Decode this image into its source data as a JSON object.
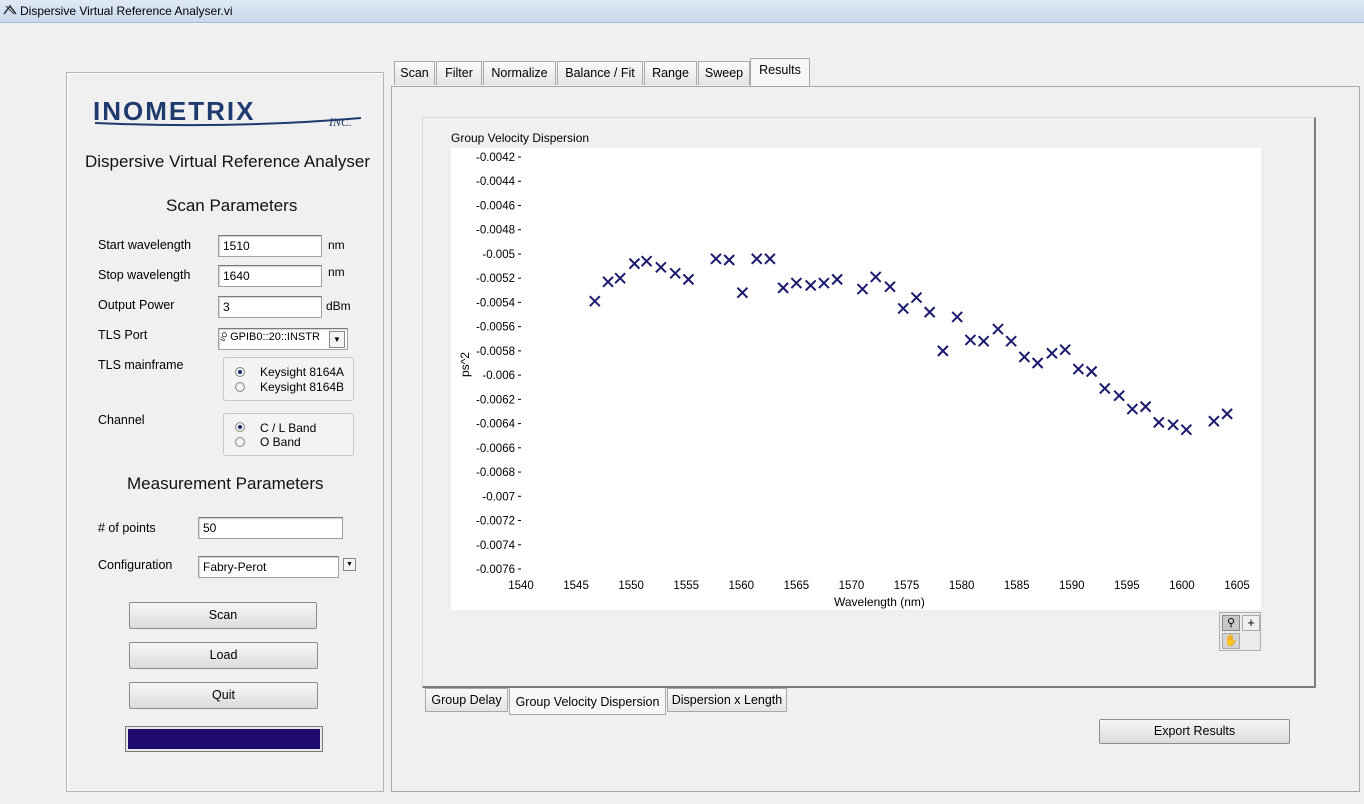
{
  "window": {
    "title": "Dispersive Virtual Reference Analyser.vi"
  },
  "left": {
    "logo_text": "INOMETRIX",
    "logo_suffix": "INC.",
    "app_title": "Dispersive Virtual Reference Analyser",
    "scan_heading": "Scan Parameters",
    "start_label": "Start wavelength",
    "start_value": "1510",
    "start_unit": "nm",
    "stop_label": "Stop wavelength",
    "stop_value": "1640",
    "stop_unit": "nm",
    "power_label": "Output Power",
    "power_value": "3",
    "power_unit": "dBm",
    "port_label": "TLS Port",
    "port_prefix": "I/O",
    "port_value": "GPIB0::20::INSTR",
    "mainframe_label": "TLS mainframe",
    "mainframe_options": [
      "Keysight 8164A",
      "Keysight 8164B"
    ],
    "channel_label": "Channel",
    "channel_options": [
      "C / L Band",
      "O Band"
    ],
    "meas_heading": "Measurement Parameters",
    "points_label": "# of points",
    "points_value": "50",
    "config_label": "Configuration",
    "config_value": "Fabry-Perot",
    "scan_btn": "Scan",
    "load_btn": "Load",
    "quit_btn": "Quit",
    "progress": 1.0,
    "progress_color": "#1f0a6e"
  },
  "tabs": [
    "Scan",
    "Filter",
    "Normalize",
    "Balance / Fit",
    "Range",
    "Sweep",
    "Results"
  ],
  "active_tab": "Results",
  "bottom_tabs": [
    "Group Delay",
    "Group Velocity Dispersion",
    "Dispersion x Length"
  ],
  "active_bottom_tab": "Group Velocity Dispersion",
  "export_btn": "Export Results",
  "chart_data": {
    "type": "scatter",
    "title": "Group Velocity Dispersion",
    "xlabel": "Wavelength (nm)",
    "ylabel": "ps^2",
    "xlim": [
      1540,
      1605
    ],
    "ylim": [
      -0.0076,
      -0.0042
    ],
    "xticks": [
      1540,
      1545,
      1550,
      1555,
      1560,
      1565,
      1570,
      1575,
      1580,
      1585,
      1590,
      1595,
      1600,
      1605
    ],
    "yticks": [
      "-0.0042",
      "-0.0044",
      "-0.0046",
      "-0.0048",
      "-0.005",
      "-0.0052",
      "-0.0054",
      "-0.0056",
      "-0.0058",
      "-0.006",
      "-0.0062",
      "-0.0064",
      "-0.0066",
      "-0.0068",
      "-0.007",
      "-0.0072",
      "-0.0074",
      "-0.0076"
    ],
    "marker": "x",
    "marker_color": "#1a1a6e",
    "x": [
      1546.7,
      1547.9,
      1549.0,
      1550.3,
      1551.4,
      1552.7,
      1554.0,
      1555.2,
      1557.7,
      1558.9,
      1560.1,
      1561.4,
      1562.6,
      1563.8,
      1565.0,
      1566.3,
      1567.5,
      1568.7,
      1571.0,
      1572.2,
      1573.5,
      1574.7,
      1575.9,
      1577.1,
      1578.3,
      1579.6,
      1580.8,
      1582.0,
      1583.3,
      1584.5,
      1585.7,
      1586.9,
      1588.2,
      1589.4,
      1590.6,
      1591.8,
      1593.0,
      1594.3,
      1595.5,
      1596.7,
      1597.9,
      1599.2,
      1600.4,
      1602.9,
      1604.1
    ],
    "y": [
      -0.00539,
      -0.00523,
      -0.0052,
      -0.00508,
      -0.00506,
      -0.00511,
      -0.00516,
      -0.00521,
      -0.00504,
      -0.00505,
      -0.00532,
      -0.00504,
      -0.00504,
      -0.00528,
      -0.00524,
      -0.00526,
      -0.00524,
      -0.00521,
      -0.00529,
      -0.00519,
      -0.00527,
      -0.00545,
      -0.00536,
      -0.00548,
      -0.0058,
      -0.00552,
      -0.00571,
      -0.00572,
      -0.00562,
      -0.00572,
      -0.00585,
      -0.0059,
      -0.00582,
      -0.00579,
      -0.00595,
      -0.00597,
      -0.00611,
      -0.00617,
      -0.00628,
      -0.00626,
      -0.00639,
      -0.00641,
      -0.00645,
      -0.00638,
      -0.00632
    ]
  }
}
